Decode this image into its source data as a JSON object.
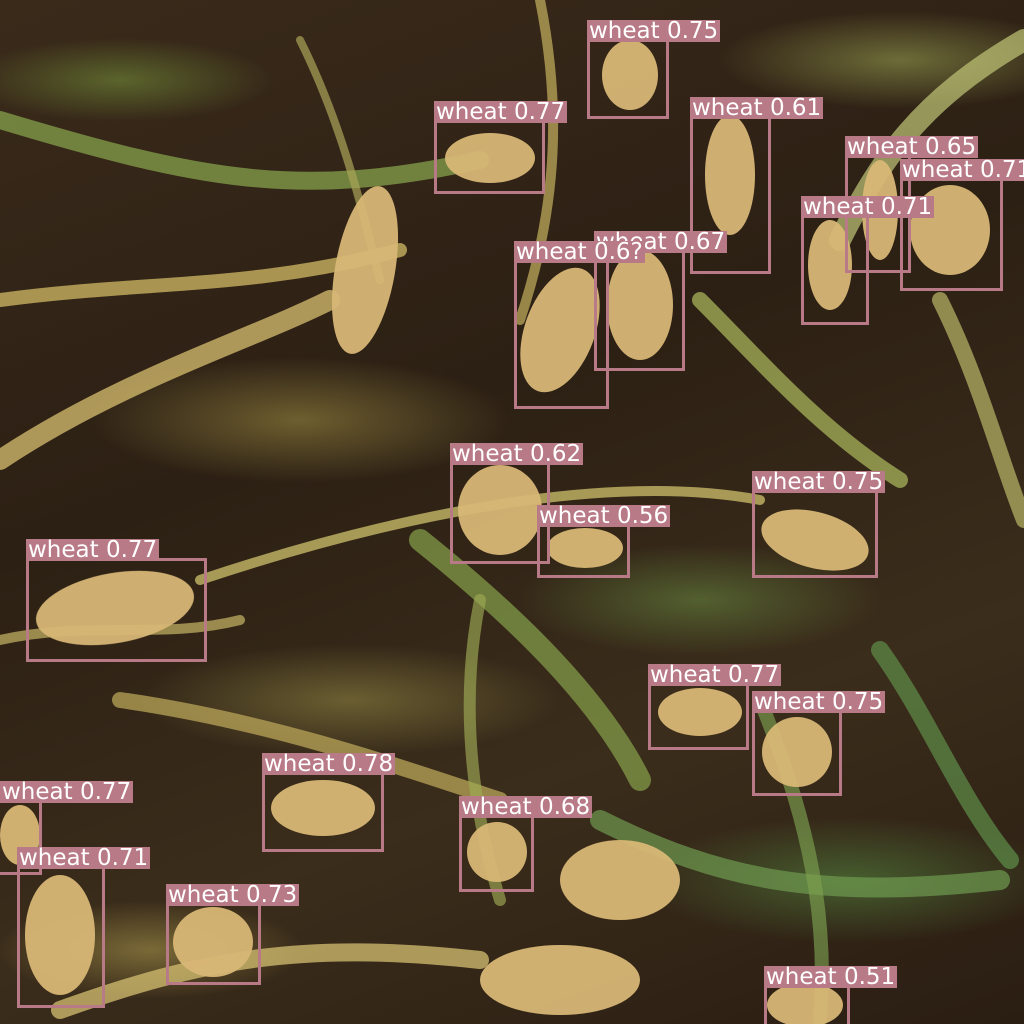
{
  "detections": [
    {
      "label": "wheat",
      "score": "0.75"
    },
    {
      "label": "wheat",
      "score": "0.77"
    },
    {
      "label": "wheat",
      "score": "0.61"
    },
    {
      "label": "wheat",
      "score": "0.65"
    },
    {
      "label": "wheat",
      "score": "0.71"
    },
    {
      "label": "wheat",
      "score": "0.71"
    },
    {
      "label": "wheat",
      "score": "0.67"
    },
    {
      "label": "wheat",
      "score": "0.6?"
    },
    {
      "label": "wheat",
      "score": "0.62"
    },
    {
      "label": "wheat",
      "score": "0.56"
    },
    {
      "label": "wheat",
      "score": "0.75"
    },
    {
      "label": "wheat",
      "score": "0.77"
    },
    {
      "label": "wheat",
      "score": "0.77"
    },
    {
      "label": "wheat",
      "score": "0.75"
    },
    {
      "label": "wheat",
      "score": "0.78"
    },
    {
      "label": "wheat",
      "score": "0.68"
    },
    {
      "label": "wheat",
      "score": "0.77"
    },
    {
      "label": "wheat",
      "score": "0.71"
    },
    {
      "label": "wheat",
      "score": "0.73"
    },
    {
      "label": "wheat",
      "score": "0.51"
    }
  ],
  "box_color": "#b87a86",
  "label_text_color": "#ffffff"
}
